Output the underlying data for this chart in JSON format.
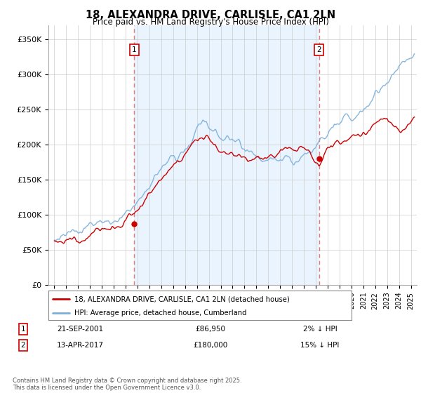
{
  "title1": "18, ALEXANDRA DRIVE, CARLISLE, CA1 2LN",
  "title2": "Price paid vs. HM Land Registry's House Price Index (HPI)",
  "ylabel_ticks": [
    "£0",
    "£50K",
    "£100K",
    "£150K",
    "£200K",
    "£250K",
    "£300K",
    "£350K"
  ],
  "ytick_values": [
    0,
    50000,
    100000,
    150000,
    200000,
    250000,
    300000,
    350000
  ],
  "ylim": [
    0,
    370000
  ],
  "xlim_start": 1994.5,
  "xlim_end": 2025.5,
  "xticks": [
    1995,
    1996,
    1997,
    1998,
    1999,
    2000,
    2001,
    2002,
    2003,
    2004,
    2005,
    2006,
    2007,
    2008,
    2009,
    2010,
    2011,
    2012,
    2013,
    2014,
    2015,
    2016,
    2017,
    2018,
    2019,
    2020,
    2021,
    2022,
    2023,
    2024,
    2025
  ],
  "transaction1_x": 2001.72,
  "transaction1_y": 86950,
  "transaction1_label": "1",
  "transaction1_date": "21-SEP-2001",
  "transaction1_price": "£86,950",
  "transaction1_hpi": "2% ↓ HPI",
  "transaction2_x": 2017.28,
  "transaction2_y": 180000,
  "transaction2_label": "2",
  "transaction2_date": "13-APR-2017",
  "transaction2_price": "£180,000",
  "transaction2_hpi": "15% ↓ HPI",
  "line1_color": "#cc0000",
  "line2_color": "#7aafda",
  "line1_label": "18, ALEXANDRA DRIVE, CARLISLE, CA1 2LN (detached house)",
  "line2_label": "HPI: Average price, detached house, Cumberland",
  "marker_box_color": "#cc0000",
  "vline_color": "#e87777",
  "shade_color": "#ddeeff",
  "background_color": "#ffffff",
  "grid_color": "#cccccc",
  "footer": "Contains HM Land Registry data © Crown copyright and database right 2025.\nThis data is licensed under the Open Government Licence v3.0."
}
